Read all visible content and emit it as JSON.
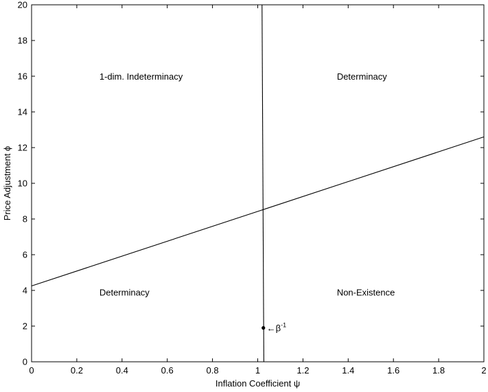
{
  "chart_data": {
    "type": "line",
    "title": "",
    "xlabel": "Inflation Coefficient ψ",
    "ylabel": "Price Adjustment ϕ",
    "xlim": [
      0,
      2
    ],
    "ylim": [
      0,
      20
    ],
    "xticks": [
      "0",
      "0.2",
      "0.4",
      "0.6",
      "0.8",
      "1",
      "1.2",
      "1.4",
      "1.6",
      "1.8",
      "2"
    ],
    "yticks": [
      "0",
      "2",
      "4",
      "6",
      "8",
      "10",
      "12",
      "14",
      "16",
      "18",
      "20"
    ],
    "grid": false,
    "series": [
      {
        "points": [
          [
            0,
            4.25
          ],
          [
            2,
            12.6
          ]
        ]
      },
      {
        "points": [
          [
            1.027,
            0
          ],
          [
            1.019,
            20
          ]
        ]
      }
    ],
    "marker": {
      "x": 1.025,
      "y": 1.9
    },
    "annotations": [
      {
        "text": "←β",
        "sup": "-1",
        "x": 1.04,
        "y": 1.9
      }
    ],
    "regions": [
      {
        "text": "1-dim. Indeterminacy",
        "x": 0.3,
        "y": 16
      },
      {
        "text": "Determinacy",
        "x": 1.35,
        "y": 16
      },
      {
        "text": "Determinacy",
        "x": 0.3,
        "y": 3.9
      },
      {
        "text": "Non-Existence",
        "x": 1.35,
        "y": 3.9
      }
    ]
  }
}
